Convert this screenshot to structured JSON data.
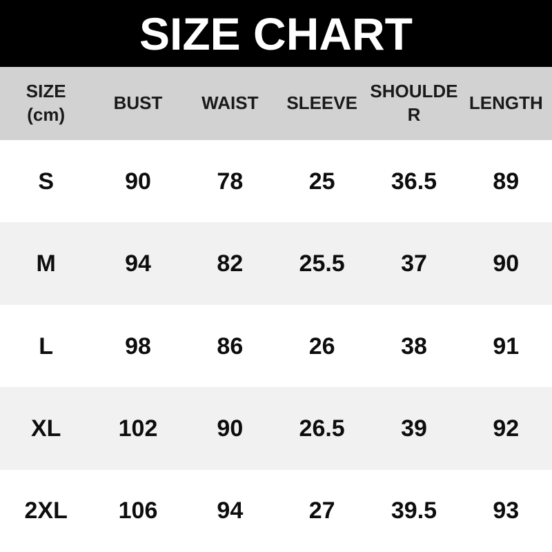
{
  "banner": {
    "title": "SIZE CHART"
  },
  "table": {
    "columns": [
      "SIZE (cm)",
      "BUST",
      "WAIST",
      "SLEEVE",
      "SHOULDER",
      "LENGTH"
    ],
    "rows": [
      {
        "size": "S",
        "bust": "90",
        "waist": "78",
        "sleeve": "25",
        "shoulder": "36.5",
        "length": "89"
      },
      {
        "size": "M",
        "bust": "94",
        "waist": "82",
        "sleeve": "25.5",
        "shoulder": "37",
        "length": "90"
      },
      {
        "size": "L",
        "bust": "98",
        "waist": "86",
        "sleeve": "26",
        "shoulder": "38",
        "length": "91"
      },
      {
        "size": "XL",
        "bust": "102",
        "waist": "90",
        "sleeve": "26.5",
        "shoulder": "39",
        "length": "92"
      },
      {
        "size": "2XL",
        "bust": "106",
        "waist": "94",
        "sleeve": "27",
        "shoulder": "39.5",
        "length": "93"
      }
    ]
  },
  "colors": {
    "banner_bg": "#000000",
    "banner_text": "#ffffff",
    "header_bg": "#d2d2d2",
    "row_bg": "#ffffff",
    "row_alt_bg": "#f1f1f1",
    "text": "#0d0d0d"
  },
  "chart_data": {
    "type": "table",
    "title": "SIZE CHART",
    "unit": "cm",
    "columns": [
      "SIZE (cm)",
      "BUST",
      "WAIST",
      "SLEEVE",
      "SHOULDER",
      "LENGTH"
    ],
    "rows": [
      [
        "S",
        90,
        78,
        25,
        36.5,
        89
      ],
      [
        "M",
        94,
        82,
        25.5,
        37,
        90
      ],
      [
        "L",
        98,
        86,
        26,
        38,
        91
      ],
      [
        "XL",
        102,
        90,
        26.5,
        39,
        92
      ],
      [
        "2XL",
        106,
        94,
        27,
        39.5,
        93
      ]
    ]
  }
}
